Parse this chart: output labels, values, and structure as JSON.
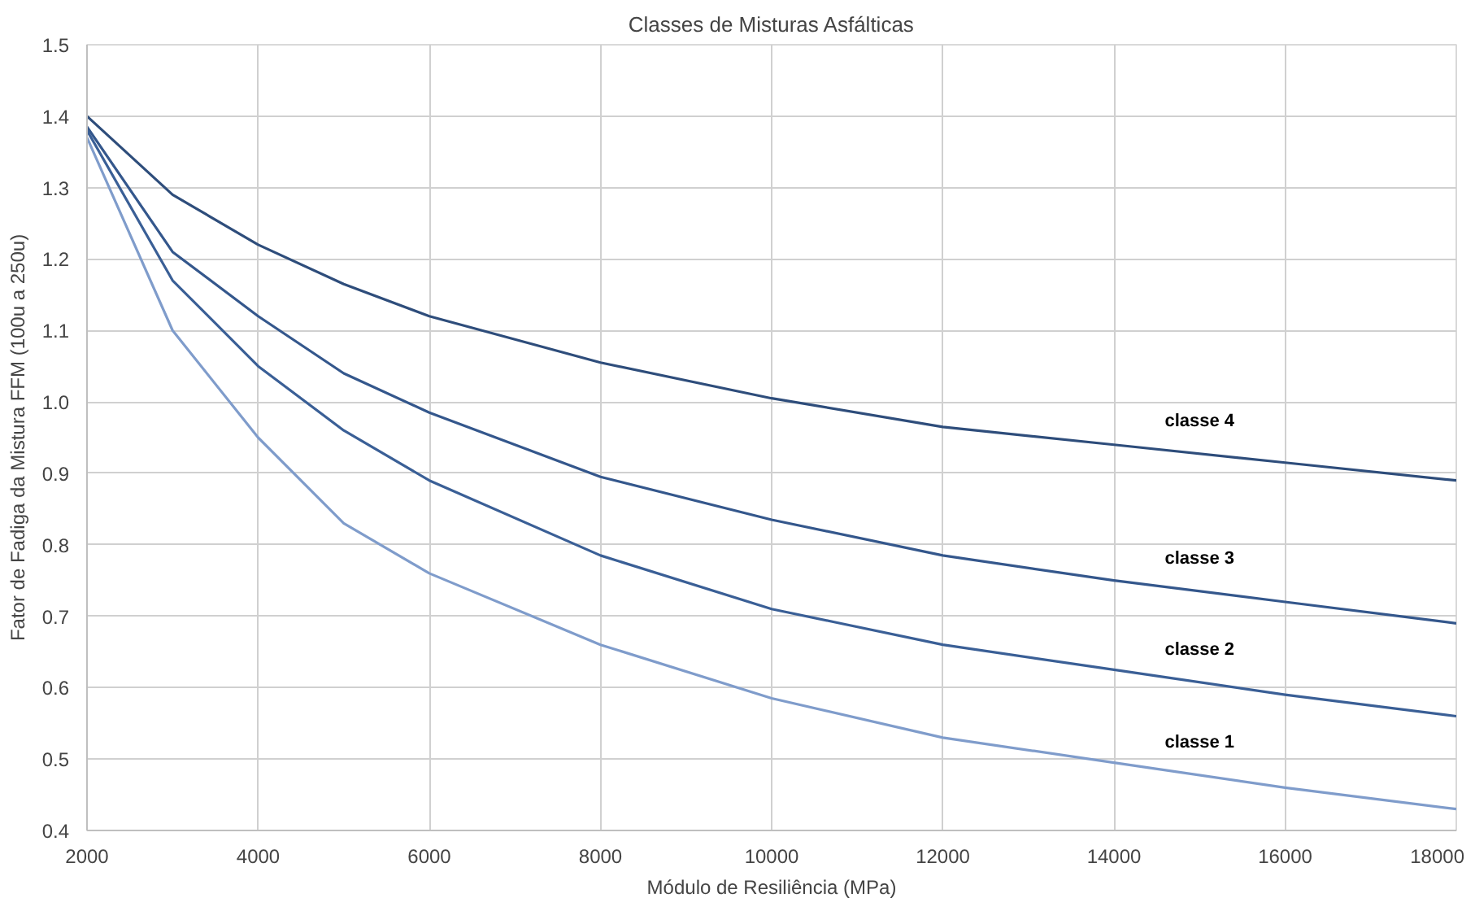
{
  "chart_data": {
    "type": "line",
    "title": "Classes de Misturas Asfálticas",
    "xlabel": "Módulo de Resiliência (MPa)",
    "ylabel": "Fator de Fadiga da Mistura FFM (100u a 250u)",
    "x": [
      2000,
      3000,
      4000,
      5000,
      6000,
      8000,
      10000,
      12000,
      14000,
      16000,
      18000
    ],
    "series": [
      {
        "name": "classe 4",
        "color": "#2e4d7b",
        "values": [
          1.4,
          1.29,
          1.22,
          1.165,
          1.12,
          1.055,
          1.005,
          0.965,
          0.94,
          0.915,
          0.89
        ]
      },
      {
        "name": "classe 3",
        "color": "#34578c",
        "values": [
          1.385,
          1.21,
          1.12,
          1.04,
          0.985,
          0.895,
          0.835,
          0.785,
          0.75,
          0.72,
          0.69
        ]
      },
      {
        "name": "classe 2",
        "color": "#3a5f96",
        "values": [
          1.38,
          1.17,
          1.05,
          0.96,
          0.89,
          0.785,
          0.71,
          0.66,
          0.625,
          0.59,
          0.56
        ]
      },
      {
        "name": "classe 1",
        "color": "#7f9ccb",
        "values": [
          1.37,
          1.1,
          0.95,
          0.83,
          0.76,
          0.66,
          0.585,
          0.53,
          0.495,
          0.46,
          0.43
        ]
      }
    ],
    "xlim": [
      2000,
      18000
    ],
    "xticks": [
      2000,
      4000,
      6000,
      8000,
      10000,
      12000,
      14000,
      16000,
      18000
    ],
    "ylim": [
      0.4,
      1.5
    ],
    "yticks": [
      {
        "value": 0.4,
        "label": "0.4"
      },
      {
        "value": 0.5,
        "label": "0.5"
      },
      {
        "value": 0.6,
        "label": "0.6"
      },
      {
        "value": 0.7,
        "label": "0.7"
      },
      {
        "value": 0.8,
        "label": "0.8"
      },
      {
        "value": 0.9,
        "label": "0.9"
      },
      {
        "value": 1.0,
        "label": "1.0"
      },
      {
        "value": 1.1,
        "label": "1.1"
      },
      {
        "value": 1.2,
        "label": "1.2"
      },
      {
        "value": 1.3,
        "label": "1.3"
      },
      {
        "value": 1.4,
        "label": "1.4"
      },
      {
        "value": 1.5,
        "label": "1.5"
      }
    ],
    "grid": true,
    "marker": "none",
    "line_style": "solid"
  }
}
